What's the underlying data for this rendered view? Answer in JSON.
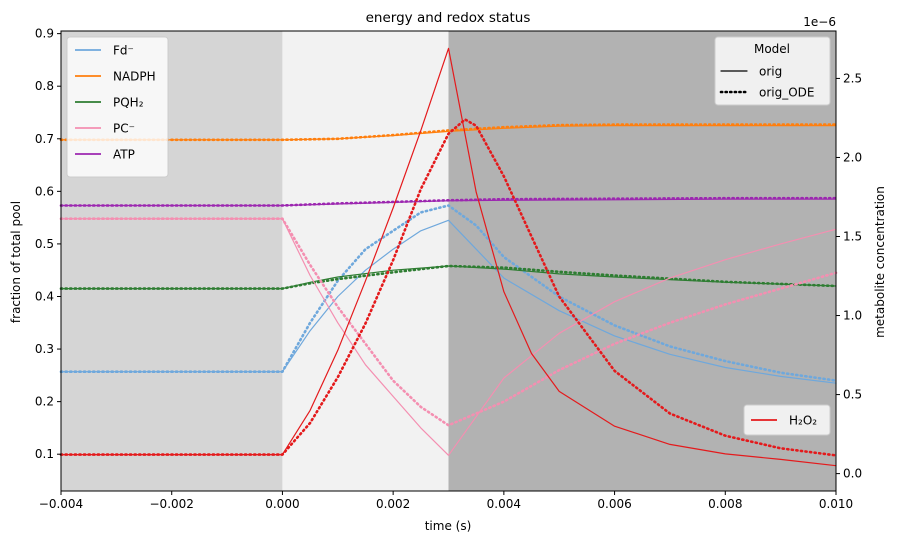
{
  "chart_data": {
    "type": "line",
    "title": "energy and redox status",
    "xlabel": "time (s)",
    "ylabel": "fraction of total pool",
    "y2label": "metabolite concentration",
    "y2_offset_label": "1e−6",
    "xlim": [
      -0.004,
      0.01
    ],
    "ylim": [
      0.03,
      0.905
    ],
    "y2lim": [
      -1.1e-07,
      2.8e-06
    ],
    "xticks": [
      -0.004,
      -0.002,
      0.0,
      0.002,
      0.004,
      0.006,
      0.008,
      0.01
    ],
    "xtick_labels": [
      "−0.004",
      "−0.002",
      "0.000",
      "0.002",
      "0.004",
      "0.006",
      "0.008",
      "0.010"
    ],
    "yticks": [
      0.1,
      0.2,
      0.3,
      0.4,
      0.5,
      0.6,
      0.7,
      0.8,
      0.9
    ],
    "ytick_labels": [
      "0.1",
      "0.2",
      "0.3",
      "0.4",
      "0.5",
      "0.6",
      "0.7",
      "0.8",
      "0.9"
    ],
    "y2ticks": [
      0.0,
      5e-07,
      1e-06,
      1.5e-06,
      2e-06,
      2.5e-06
    ],
    "y2tick_labels": [
      "0.0",
      "0.5",
      "1.0",
      "1.5",
      "2.0",
      "2.5"
    ],
    "grid": false,
    "background_regions": [
      {
        "x0": -0.004,
        "x1": 0.0,
        "color": "#d5d5d5"
      },
      {
        "x0": 0.0,
        "x1": 0.003,
        "color": "#f2f2f2"
      },
      {
        "x0": 0.003,
        "x1": 0.01,
        "color": "#b2b2b2"
      }
    ],
    "series": [
      {
        "name": "Fd⁻",
        "color": "#6fa8dc",
        "model": "orig",
        "axis": "left",
        "x": [
          -0.004,
          0.0,
          0.0005,
          0.001,
          0.0015,
          0.002,
          0.0025,
          0.003,
          0.0035,
          0.004,
          0.005,
          0.006,
          0.007,
          0.008,
          0.009,
          0.01
        ],
        "y": [
          0.257,
          0.257,
          0.335,
          0.4,
          0.45,
          0.49,
          0.525,
          0.545,
          0.49,
          0.435,
          0.373,
          0.325,
          0.29,
          0.265,
          0.248,
          0.235
        ]
      },
      {
        "name": "Fd⁻",
        "color": "#6fa8dc",
        "model": "orig_ODE",
        "axis": "left",
        "x": [
          -0.004,
          0.0,
          0.0005,
          0.001,
          0.0015,
          0.002,
          0.0025,
          0.003,
          0.0035,
          0.004,
          0.005,
          0.006,
          0.007,
          0.008,
          0.009,
          0.01
        ],
        "y": [
          0.257,
          0.257,
          0.35,
          0.43,
          0.49,
          0.525,
          0.56,
          0.573,
          0.535,
          0.475,
          0.4,
          0.345,
          0.305,
          0.277,
          0.255,
          0.24
        ]
      },
      {
        "name": "NADPH",
        "color": "#ff7f0e",
        "model": "orig",
        "axis": "left",
        "x": [
          -0.004,
          0.0,
          0.001,
          0.002,
          0.003,
          0.004,
          0.005,
          0.006,
          0.008,
          0.01
        ],
        "y": [
          0.698,
          0.698,
          0.7,
          0.706,
          0.714,
          0.72,
          0.724,
          0.725,
          0.725,
          0.725
        ]
      },
      {
        "name": "NADPH",
        "color": "#ff7f0e",
        "model": "orig_ODE",
        "axis": "left",
        "x": [
          -0.004,
          0.0,
          0.001,
          0.002,
          0.003,
          0.004,
          0.005,
          0.006,
          0.008,
          0.01
        ],
        "y": [
          0.698,
          0.698,
          0.7,
          0.707,
          0.716,
          0.722,
          0.726,
          0.727,
          0.727,
          0.727
        ]
      },
      {
        "name": "PQH₂",
        "color": "#2e7d32",
        "model": "orig",
        "axis": "left",
        "x": [
          -0.004,
          0.0,
          0.0005,
          0.001,
          0.002,
          0.003,
          0.004,
          0.005,
          0.006,
          0.008,
          0.01
        ],
        "y": [
          0.415,
          0.415,
          0.427,
          0.437,
          0.45,
          0.458,
          0.452,
          0.443,
          0.437,
          0.427,
          0.42
        ]
      },
      {
        "name": "PQH₂",
        "color": "#2e7d32",
        "model": "orig_ODE",
        "axis": "left",
        "x": [
          -0.004,
          0.0,
          0.0005,
          0.001,
          0.002,
          0.003,
          0.004,
          0.005,
          0.006,
          0.008,
          0.01
        ],
        "y": [
          0.415,
          0.415,
          0.425,
          0.433,
          0.446,
          0.458,
          0.455,
          0.447,
          0.44,
          0.428,
          0.42
        ]
      },
      {
        "name": "PC⁻",
        "color": "#f48fb1",
        "model": "orig",
        "axis": "left",
        "x": [
          -0.004,
          0.0,
          0.0005,
          0.001,
          0.0015,
          0.002,
          0.0025,
          0.003,
          0.004,
          0.005,
          0.006,
          0.007,
          0.008,
          0.009,
          0.01
        ],
        "y": [
          0.548,
          0.548,
          0.44,
          0.35,
          0.27,
          0.21,
          0.15,
          0.098,
          0.245,
          0.33,
          0.39,
          0.435,
          0.47,
          0.5,
          0.528
        ]
      },
      {
        "name": "PC⁻",
        "color": "#f48fb1",
        "model": "orig_ODE",
        "axis": "left",
        "x": [
          -0.004,
          0.0,
          0.0005,
          0.001,
          0.0015,
          0.002,
          0.0025,
          0.003,
          0.004,
          0.005,
          0.006,
          0.007,
          0.008,
          0.009,
          0.01
        ],
        "y": [
          0.548,
          0.548,
          0.46,
          0.38,
          0.31,
          0.24,
          0.19,
          0.155,
          0.2,
          0.26,
          0.31,
          0.35,
          0.385,
          0.415,
          0.445
        ]
      },
      {
        "name": "ATP",
        "color": "#9c27b0",
        "model": "orig",
        "axis": "left",
        "x": [
          -0.004,
          0.0,
          0.001,
          0.002,
          0.003,
          0.004,
          0.006,
          0.008,
          0.01
        ],
        "y": [
          0.573,
          0.573,
          0.576,
          0.579,
          0.582,
          0.583,
          0.584,
          0.585,
          0.585
        ]
      },
      {
        "name": "ATP",
        "color": "#9c27b0",
        "model": "orig_ODE",
        "axis": "left",
        "x": [
          -0.004,
          0.0,
          0.001,
          0.002,
          0.003,
          0.004,
          0.006,
          0.008,
          0.01
        ],
        "y": [
          0.573,
          0.573,
          0.577,
          0.58,
          0.583,
          0.585,
          0.586,
          0.587,
          0.587
        ]
      },
      {
        "name": "H₂O₂",
        "color": "#e41a1c",
        "model": "orig",
        "axis": "right",
        "x": [
          -0.004,
          0.0,
          0.0005,
          0.001,
          0.0015,
          0.002,
          0.0025,
          0.003,
          0.0035,
          0.004,
          0.0045,
          0.005,
          0.006,
          0.007,
          0.008,
          0.009,
          0.01
        ],
        "y": [
          1.2e-07,
          1.2e-07,
          4e-07,
          7.8e-07,
          1.22e-06,
          1.68e-06,
          2.17e-06,
          2.69e-06,
          1.78e-06,
          1.15e-06,
          7.6e-07,
          5.2e-07,
          3e-07,
          1.85e-07,
          1.25e-07,
          9e-08,
          5e-08
        ]
      },
      {
        "name": "H₂O₂",
        "color": "#e41a1c",
        "model": "orig_ODE",
        "axis": "right",
        "x": [
          -0.004,
          0.0,
          0.0005,
          0.001,
          0.0015,
          0.002,
          0.0025,
          0.003,
          0.0033,
          0.0035,
          0.004,
          0.0045,
          0.005,
          0.006,
          0.007,
          0.008,
          0.009,
          0.01
        ],
        "y": [
          1.2e-07,
          1.2e-07,
          3.2e-07,
          6.1e-07,
          9.5e-07,
          1.35e-06,
          1.8e-06,
          2.15e-06,
          2.24e-06,
          2.2e-06,
          1.88e-06,
          1.5e-06,
          1.12e-06,
          6.5e-07,
          3.8e-07,
          2.4e-07,
          1.6e-07,
          1.15e-07
        ]
      }
    ],
    "legend_species": {
      "placement": "top-left",
      "entries": [
        {
          "label": "Fd⁻",
          "color": "#6fa8dc"
        },
        {
          "label": "NADPH",
          "color": "#ff7f0e"
        },
        {
          "label": "PQH₂",
          "color": "#2e7d32"
        },
        {
          "label": "PC⁻",
          "color": "#f48fb1"
        },
        {
          "label": "ATP",
          "color": "#9c27b0"
        }
      ]
    },
    "legend_model": {
      "placement": "top-right",
      "title": "Model",
      "entries": [
        {
          "label": "orig",
          "style": "solid"
        },
        {
          "label": "orig_ODE",
          "style": "dotted"
        }
      ]
    },
    "legend_h2o2": {
      "placement": "lower-right",
      "entries": [
        {
          "label": "H₂O₂",
          "color": "#e41a1c"
        }
      ]
    }
  }
}
